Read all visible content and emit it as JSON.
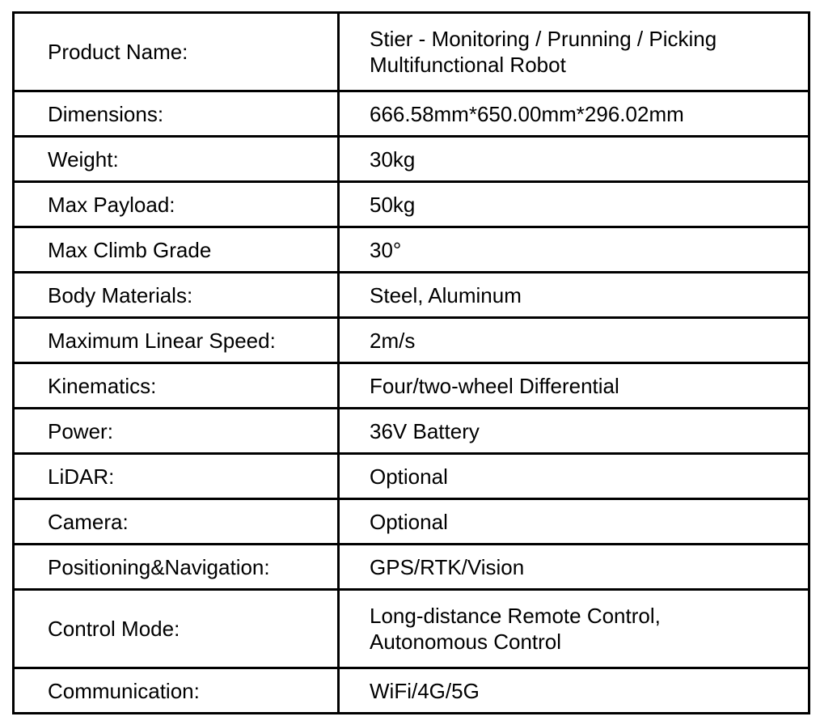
{
  "colors": {
    "background": "#ffffff",
    "border": "#000000",
    "text": "#000000"
  },
  "table": {
    "columns": [
      "label",
      "value"
    ],
    "rows": [
      {
        "label": "Product Name：",
        "value": [
          "Stier - Monitoring / Prunning / Picking",
          "Multifunctional Robot"
        ]
      },
      {
        "label": "Dimensions:",
        "value": "666.58mm*650.00mm*296.02mm"
      },
      {
        "label": "Weight:",
        "value": "30kg"
      },
      {
        "label": "Max Payload:",
        "value": "50kg"
      },
      {
        "label": "Max Climb Grade",
        "value": "30°"
      },
      {
        "label": "Body Materials:",
        "value": "Steel, Aluminum"
      },
      {
        "label": "Maximum Linear Speed:",
        "value": "2m/s"
      },
      {
        "label": "Kinematics：",
        "value": "Four/two-wheel Differential"
      },
      {
        "label": "Power：",
        "value": "36V Battery"
      },
      {
        "label": "LiDAR：",
        "value": "Optional"
      },
      {
        "label": "Camera：",
        "value": "Optional"
      },
      {
        "label": "Positioning&Navigation：",
        "value": "GPS/RTK/Vision"
      },
      {
        "label": "Control Mode：",
        "value": [
          "Long-distance Remote Control,",
          "Autonomous Control"
        ]
      },
      {
        "label": "Communication：",
        "value": "WiFi/4G/5G"
      }
    ]
  }
}
